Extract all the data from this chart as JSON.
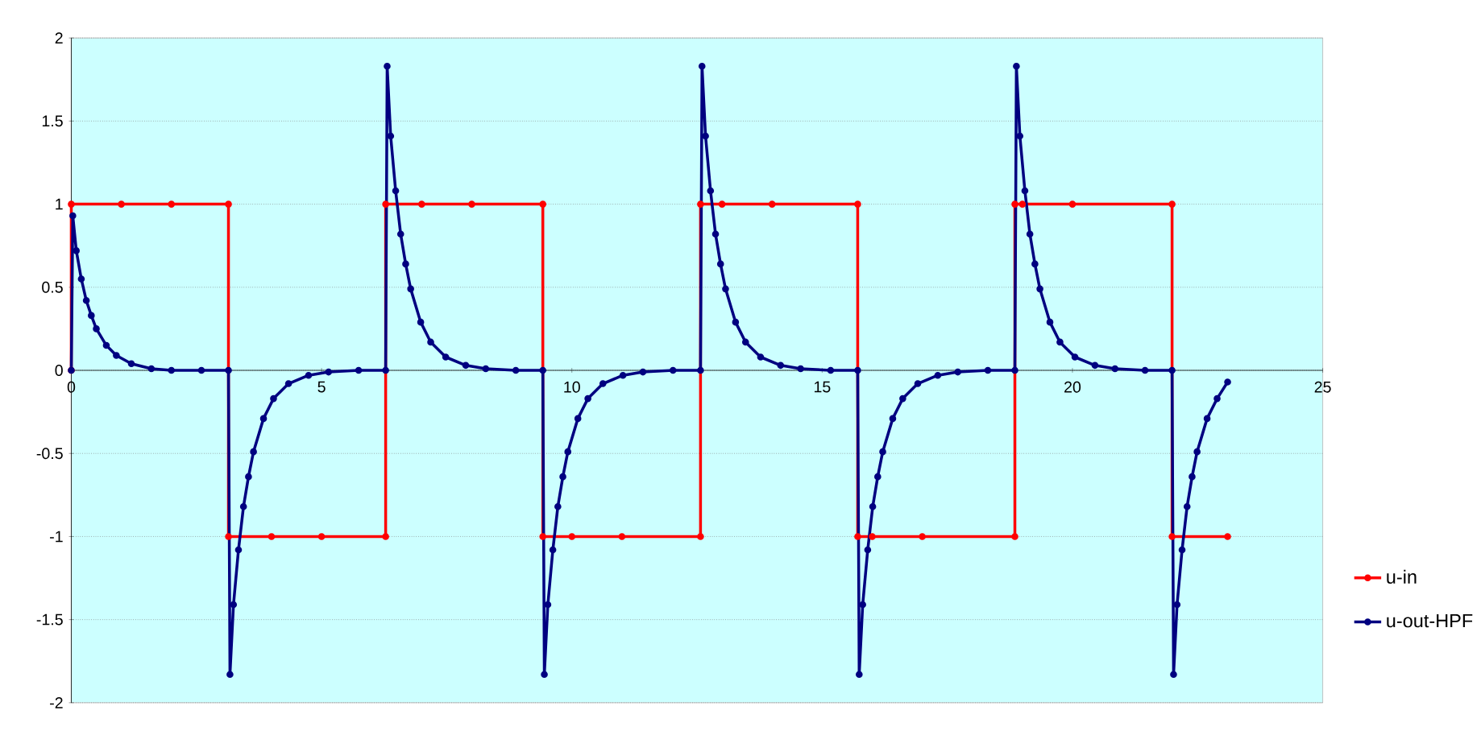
{
  "chart_data": {
    "type": "line",
    "marker": "circle",
    "grid": "y",
    "legend": "right",
    "xlim": [
      0,
      25
    ],
    "xticks": [
      0,
      5,
      10,
      15,
      20,
      25
    ],
    "ylim": [
      -2,
      2
    ],
    "yticks": [
      -2,
      -1.5,
      -1,
      -0.5,
      0,
      0.5,
      1,
      1.5,
      2
    ],
    "series": [
      {
        "name": "u-in",
        "color": "#ff0000",
        "x": [
          0,
          0,
          1,
          2,
          3.14,
          3.14,
          4,
          5,
          6.28,
          6.28,
          7,
          8,
          9.42,
          9.42,
          10,
          11,
          12.57,
          12.57,
          13,
          14,
          15.71,
          15.71,
          16,
          17,
          18.85,
          18.85,
          19,
          20,
          21.99,
          21.99,
          23.1
        ],
        "values": [
          0,
          1,
          1,
          1,
          1,
          -1,
          -1,
          -1,
          -1,
          1,
          1,
          1,
          1,
          -1,
          -1,
          -1,
          -1,
          1,
          1,
          1,
          1,
          -1,
          -1,
          -1,
          -1,
          1,
          1,
          1,
          1,
          -1,
          -1
        ]
      },
      {
        "name": "u-out-HPF",
        "color": "#000080",
        "x": [
          0,
          0.03,
          0.1,
          0.2,
          0.3,
          0.4,
          0.5,
          0.7,
          0.9,
          1.2,
          1.6,
          2.0,
          2.6,
          3.14,
          3.17,
          3.24,
          3.34,
          3.44,
          3.54,
          3.64,
          3.84,
          4.04,
          4.34,
          4.74,
          5.14,
          5.74,
          6.28,
          6.31,
          6.38,
          6.48,
          6.58,
          6.68,
          6.78,
          6.98,
          7.18,
          7.48,
          7.88,
          8.28,
          8.88,
          9.42,
          9.45,
          9.52,
          9.62,
          9.72,
          9.82,
          9.92,
          10.12,
          10.32,
          10.62,
          11.02,
          11.42,
          12.02,
          12.57,
          12.6,
          12.67,
          12.77,
          12.87,
          12.97,
          13.07,
          13.27,
          13.47,
          13.77,
          14.17,
          14.57,
          15.17,
          15.71,
          15.74,
          15.81,
          15.91,
          16.01,
          16.11,
          16.21,
          16.41,
          16.61,
          16.91,
          17.31,
          17.71,
          18.31,
          18.85,
          18.88,
          18.95,
          19.05,
          19.15,
          19.25,
          19.35,
          19.55,
          19.75,
          20.05,
          20.45,
          20.85,
          21.45,
          21.99,
          22.02,
          22.09,
          22.19,
          22.29,
          22.39,
          22.49,
          22.69,
          22.89,
          23.1
        ],
        "values": [
          0,
          0.93,
          0.72,
          0.55,
          0.42,
          0.33,
          0.25,
          0.15,
          0.09,
          0.04,
          0.01,
          0,
          0,
          0,
          -1.83,
          -1.41,
          -1.08,
          -0.82,
          -0.64,
          -0.49,
          -0.29,
          -0.17,
          -0.08,
          -0.03,
          -0.01,
          0,
          0,
          1.83,
          1.41,
          1.08,
          0.82,
          0.64,
          0.49,
          0.29,
          0.17,
          0.08,
          0.03,
          0.01,
          0,
          0,
          -1.83,
          -1.41,
          -1.08,
          -0.82,
          -0.64,
          -0.49,
          -0.29,
          -0.17,
          -0.08,
          -0.03,
          -0.01,
          0,
          0,
          1.83,
          1.41,
          1.08,
          0.82,
          0.64,
          0.49,
          0.29,
          0.17,
          0.08,
          0.03,
          0.01,
          0,
          0,
          -1.83,
          -1.41,
          -1.08,
          -0.82,
          -0.64,
          -0.49,
          -0.29,
          -0.17,
          -0.08,
          -0.03,
          -0.01,
          0,
          0,
          1.83,
          1.41,
          1.08,
          0.82,
          0.64,
          0.49,
          0.29,
          0.17,
          0.08,
          0.03,
          0.01,
          0,
          0,
          -1.83,
          -1.41,
          -1.08,
          -0.82,
          -0.64,
          -0.49,
          -0.29,
          -0.17,
          -0.07
        ]
      }
    ]
  }
}
